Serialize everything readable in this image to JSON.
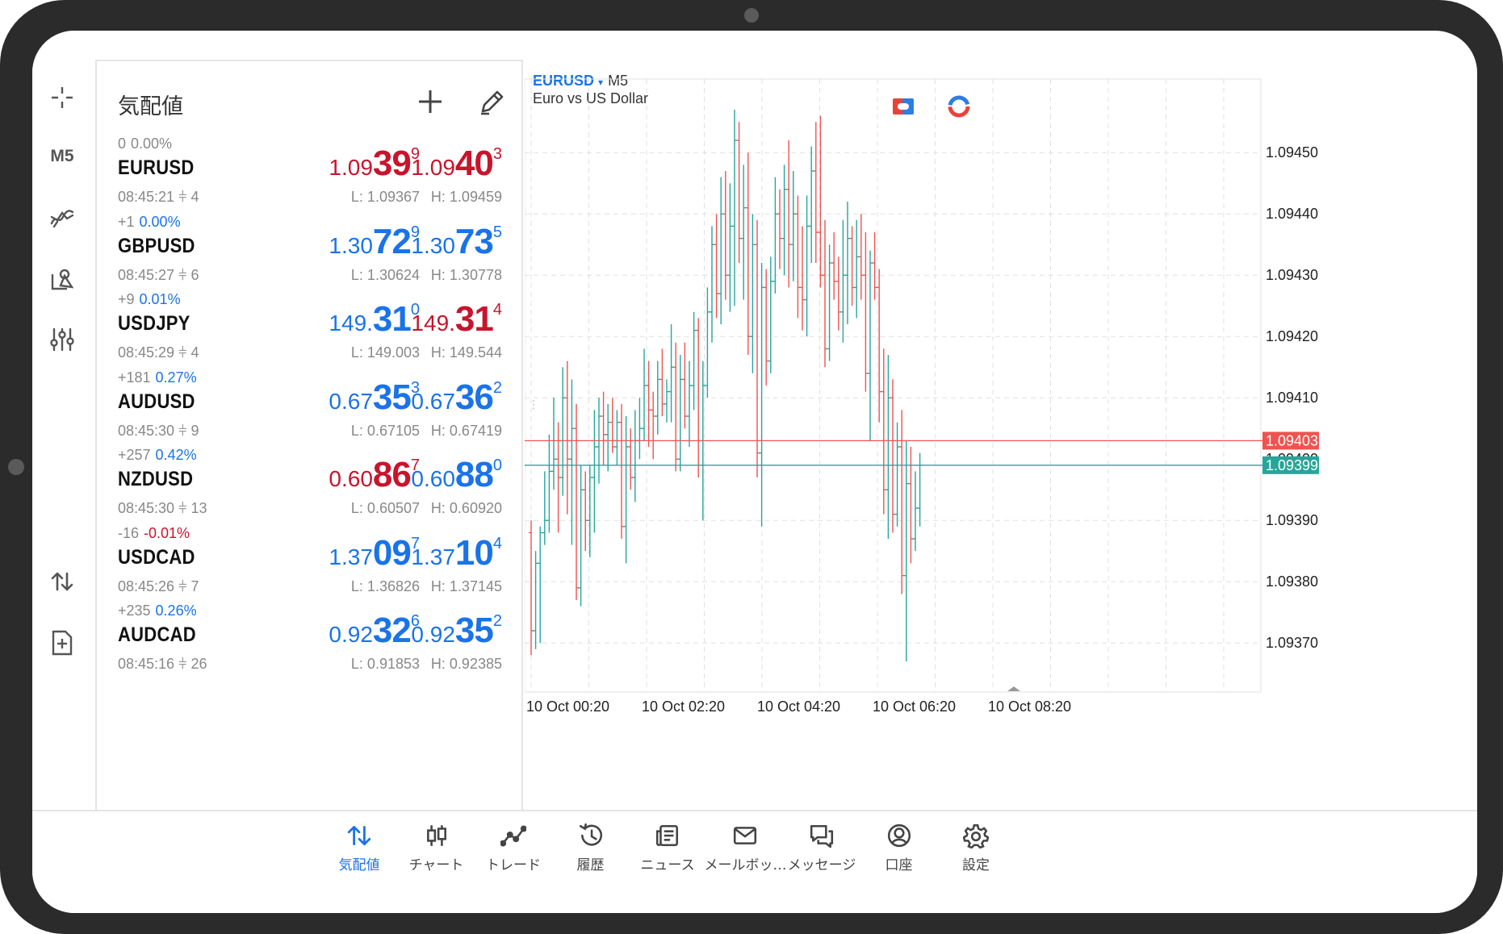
{
  "device": {
    "frame_color": "#2b2b2b"
  },
  "toolbar": {
    "items": [
      "crosshair-icon",
      "M5",
      "indicators-icon",
      "objects-icon",
      "settings-sliders-icon"
    ],
    "timeframe_label": "M5",
    "bottom_items": [
      "trade-arrows-icon",
      "new-order-icon"
    ]
  },
  "quotes": {
    "title": "気配値",
    "rows": [
      {
        "change": "0",
        "pct": "0.00%",
        "pct_color": "gray",
        "symbol": "EURUSD",
        "time": "08:45:21",
        "spread": "4",
        "bid": {
          "small": "1.09",
          "big": "39",
          "tiny": "9",
          "color": "red"
        },
        "ask": {
          "small": "1.09",
          "big": "40",
          "tiny": "3",
          "color": "red"
        },
        "low": "L: 1.09367",
        "high": "H: 1.09459"
      },
      {
        "change": "+1",
        "pct": "0.00%",
        "pct_color": "blue",
        "symbol": "GBPUSD",
        "time": "08:45:27",
        "spread": "6",
        "bid": {
          "small": "1.30",
          "big": "72",
          "tiny": "9",
          "color": "blue"
        },
        "ask": {
          "small": "1.30",
          "big": "73",
          "tiny": "5",
          "color": "blue"
        },
        "low": "L: 1.30624",
        "high": "H: 1.30778"
      },
      {
        "change": "+9",
        "pct": "0.01%",
        "pct_color": "blue",
        "symbol": "USDJPY",
        "time": "08:45:29",
        "spread": "4",
        "bid": {
          "small": "149.",
          "big": "31",
          "tiny": "0",
          "color": "blue"
        },
        "ask": {
          "small": "149.",
          "big": "31",
          "tiny": "4",
          "color": "red"
        },
        "low": "L: 149.003",
        "high": "H: 149.544"
      },
      {
        "change": "+181",
        "pct": "0.27%",
        "pct_color": "blue",
        "symbol": "AUDUSD",
        "time": "08:45:30",
        "spread": "9",
        "bid": {
          "small": "0.67",
          "big": "35",
          "tiny": "3",
          "color": "blue"
        },
        "ask": {
          "small": "0.67",
          "big": "36",
          "tiny": "2",
          "color": "blue"
        },
        "low": "L: 0.67105",
        "high": "H: 0.67419"
      },
      {
        "change": "+257",
        "pct": "0.42%",
        "pct_color": "blue",
        "symbol": "NZDUSD",
        "time": "08:45:30",
        "spread": "13",
        "bid": {
          "small": "0.60",
          "big": "86",
          "tiny": "7",
          "color": "red"
        },
        "ask": {
          "small": "0.60",
          "big": "88",
          "tiny": "0",
          "color": "blue"
        },
        "low": "L: 0.60507",
        "high": "H: 0.60920"
      },
      {
        "change": "-16",
        "pct": "-0.01%",
        "pct_color": "red",
        "symbol": "USDCAD",
        "time": "08:45:26",
        "spread": "7",
        "bid": {
          "small": "1.37",
          "big": "09",
          "tiny": "7",
          "color": "blue"
        },
        "ask": {
          "small": "1.37",
          "big": "10",
          "tiny": "4",
          "color": "blue"
        },
        "low": "L: 1.36826",
        "high": "H: 1.37145"
      },
      {
        "change": "+235",
        "pct": "0.26%",
        "pct_color": "blue",
        "symbol": "AUDCAD",
        "time": "08:45:16",
        "spread": "26",
        "bid": {
          "small": "0.92",
          "big": "32",
          "tiny": "6",
          "color": "blue"
        },
        "ask": {
          "small": "0.92",
          "big": "35",
          "tiny": "2",
          "color": "blue"
        },
        "low": "L: 0.91853",
        "high": "H: 0.92385"
      }
    ]
  },
  "chart": {
    "symbol": "EURUSD",
    "dropdown": "▾",
    "timeframe": "M5",
    "description": "Euro vs US Dollar",
    "colors": {
      "bull": "#26a69a",
      "bear": "#ef5350",
      "neutral": "#333333",
      "ask_line": "#ef5350",
      "bid_line": "#26a69a",
      "grid": "#e0e0e0"
    }
  },
  "chart_data": {
    "type": "ohlc",
    "ylim": [
      1.09362,
      1.09462
    ],
    "yticks": [
      "1.09450",
      "1.09440",
      "1.09430",
      "1.09420",
      "1.09410",
      "1.09390",
      "1.09380",
      "1.09370"
    ],
    "xticks": [
      "10 Oct 00:20",
      "10 Oct 02:20",
      "10 Oct 04:20",
      "10 Oct 06:20",
      "10 Oct 08:20"
    ],
    "ask_price": 1.09403,
    "bid_price": 1.09399,
    "ask_label": "1.09403",
    "bid_label": "1.09399",
    "hidden_label": "1.09400",
    "bars": [
      [
        1.09388,
        1.0939,
        1.09368,
        1.09372
      ],
      [
        1.09372,
        1.09385,
        1.09369,
        1.09383
      ],
      [
        1.09383,
        1.09389,
        1.0937,
        1.09388
      ],
      [
        1.09388,
        1.09398,
        1.09386,
        1.0939
      ],
      [
        1.0939,
        1.09404,
        1.09388,
        1.09398
      ],
      [
        1.09398,
        1.0941,
        1.09395,
        1.094
      ],
      [
        1.094,
        1.09406,
        1.09388,
        1.09397
      ],
      [
        1.09397,
        1.09415,
        1.09394,
        1.0941
      ],
      [
        1.0941,
        1.09416,
        1.09391,
        1.094
      ],
      [
        1.094,
        1.09413,
        1.09386,
        1.09405
      ],
      [
        1.09405,
        1.09409,
        1.09377,
        1.09379
      ],
      [
        1.09379,
        1.09399,
        1.09376,
        1.09395
      ],
      [
        1.09395,
        1.09398,
        1.09385,
        1.0939
      ],
      [
        1.0939,
        1.09399,
        1.09384,
        1.09397
      ],
      [
        1.09397,
        1.09408,
        1.09388,
        1.09402
      ],
      [
        1.09402,
        1.0941,
        1.09396,
        1.09407
      ],
      [
        1.09407,
        1.09411,
        1.09399,
        1.09404
      ],
      [
        1.09404,
        1.09409,
        1.09398,
        1.09406
      ],
      [
        1.09406,
        1.0941,
        1.09401,
        1.09402
      ],
      [
        1.09402,
        1.09408,
        1.09399,
        1.09406
      ],
      [
        1.09406,
        1.09409,
        1.09387,
        1.09389
      ],
      [
        1.09389,
        1.09407,
        1.09383,
        1.09402
      ],
      [
        1.09402,
        1.09405,
        1.09395,
        1.09397
      ],
      [
        1.09397,
        1.09408,
        1.09393,
        1.09403
      ],
      [
        1.09403,
        1.0941,
        1.094,
        1.09405
      ],
      [
        1.09405,
        1.09418,
        1.09403,
        1.09412
      ],
      [
        1.09412,
        1.09416,
        1.09402,
        1.09408
      ],
      [
        1.09408,
        1.09411,
        1.094,
        1.09407
      ],
      [
        1.09407,
        1.09416,
        1.09404,
        1.09413
      ],
      [
        1.09413,
        1.09418,
        1.09407,
        1.09409
      ],
      [
        1.09409,
        1.09413,
        1.09406,
        1.09411
      ],
      [
        1.09411,
        1.09422,
        1.09406,
        1.09415
      ],
      [
        1.09415,
        1.09419,
        1.09398,
        1.094
      ],
      [
        1.094,
        1.09417,
        1.09398,
        1.09413
      ],
      [
        1.09413,
        1.09419,
        1.09405,
        1.09407
      ],
      [
        1.09407,
        1.09416,
        1.09402,
        1.09412
      ],
      [
        1.09412,
        1.09424,
        1.09408,
        1.09421
      ],
      [
        1.09421,
        1.09423,
        1.09397,
        1.09399
      ],
      [
        1.09399,
        1.09416,
        1.0939,
        1.09412
      ],
      [
        1.09412,
        1.09428,
        1.0941,
        1.09424
      ],
      [
        1.09424,
        1.09438,
        1.09419,
        1.09435
      ],
      [
        1.09435,
        1.0944,
        1.09423,
        1.09427
      ],
      [
        1.09427,
        1.09446,
        1.09422,
        1.0944
      ],
      [
        1.0944,
        1.09447,
        1.09426,
        1.0943
      ],
      [
        1.0943,
        1.09445,
        1.09424,
        1.09438
      ],
      [
        1.09438,
        1.09457,
        1.09425,
        1.09452
      ],
      [
        1.09452,
        1.09455,
        1.09432,
        1.09436
      ],
      [
        1.09436,
        1.09448,
        1.09426,
        1.09441
      ],
      [
        1.09441,
        1.0945,
        1.09417,
        1.0942
      ],
      [
        1.0942,
        1.0944,
        1.09414,
        1.09435
      ],
      [
        1.09435,
        1.09439,
        1.09397,
        1.09401
      ],
      [
        1.09401,
        1.09432,
        1.09389,
        1.09428
      ],
      [
        1.09428,
        1.09431,
        1.09412,
        1.09416
      ],
      [
        1.09416,
        1.09433,
        1.09414,
        1.09429
      ],
      [
        1.09429,
        1.09446,
        1.09427,
        1.0944
      ],
      [
        1.0944,
        1.09444,
        1.09431,
        1.09436
      ],
      [
        1.09436,
        1.09448,
        1.0943,
        1.09444
      ],
      [
        1.09444,
        1.09452,
        1.09428,
        1.09435
      ],
      [
        1.09435,
        1.09447,
        1.09429,
        1.0944
      ],
      [
        1.0944,
        1.09443,
        1.09423,
        1.09428
      ],
      [
        1.09428,
        1.09438,
        1.09421,
        1.09426
      ],
      [
        1.09426,
        1.09443,
        1.0942,
        1.09438
      ],
      [
        1.09438,
        1.09451,
        1.09432,
        1.09447
      ],
      [
        1.09447,
        1.09455,
        1.09432,
        1.09437
      ],
      [
        1.09437,
        1.09456,
        1.09428,
        1.0943
      ],
      [
        1.0943,
        1.09439,
        1.09415,
        1.09418
      ],
      [
        1.09418,
        1.09435,
        1.09416,
        1.09432
      ],
      [
        1.09432,
        1.09437,
        1.09426,
        1.09429
      ],
      [
        1.09429,
        1.09433,
        1.09421,
        1.09424
      ],
      [
        1.09424,
        1.09439,
        1.09419,
        1.0943
      ],
      [
        1.0943,
        1.09442,
        1.09422,
        1.09436
      ],
      [
        1.09436,
        1.09438,
        1.09425,
        1.09428
      ],
      [
        1.09428,
        1.09439,
        1.09423,
        1.09433
      ],
      [
        1.09433,
        1.0944,
        1.09426,
        1.0943
      ],
      [
        1.0943,
        1.09437,
        1.09411,
        1.09414
      ],
      [
        1.09414,
        1.09434,
        1.09403,
        1.09432
      ],
      [
        1.09432,
        1.09437,
        1.09426,
        1.09428
      ],
      [
        1.09428,
        1.09431,
        1.09406,
        1.09411
      ],
      [
        1.09411,
        1.09418,
        1.09391,
        1.09395
      ],
      [
        1.09395,
        1.09417,
        1.09387,
        1.0941
      ],
      [
        1.0941,
        1.09413,
        1.09388,
        1.09391
      ],
      [
        1.09391,
        1.09406,
        1.09389,
        1.09402
      ],
      [
        1.09402,
        1.09408,
        1.09378,
        1.09381
      ],
      [
        1.09381,
        1.09403,
        1.09367,
        1.09396
      ],
      [
        1.09396,
        1.09402,
        1.09383,
        1.09387
      ],
      [
        1.09387,
        1.09398,
        1.09385,
        1.09392
      ],
      [
        1.09392,
        1.09401,
        1.09389,
        1.09399
      ]
    ]
  },
  "nav": {
    "active_color": "#1a73e8",
    "items": [
      {
        "label": "気配値",
        "icon": "quotes-arrows-icon",
        "active": true
      },
      {
        "label": "チャート",
        "icon": "chart-candles-icon",
        "active": false
      },
      {
        "label": "トレード",
        "icon": "trade-line-icon",
        "active": false
      },
      {
        "label": "履歴",
        "icon": "history-clock-icon",
        "active": false
      },
      {
        "label": "ニュース",
        "icon": "news-icon",
        "active": false
      },
      {
        "label": "メールボッ…",
        "icon": "mail-icon",
        "active": false
      },
      {
        "label": "メッセージ",
        "icon": "messages-icon",
        "active": false
      },
      {
        "label": "口座",
        "icon": "account-icon",
        "active": false
      },
      {
        "label": "設定",
        "icon": "settings-gear-icon",
        "active": false
      }
    ]
  }
}
